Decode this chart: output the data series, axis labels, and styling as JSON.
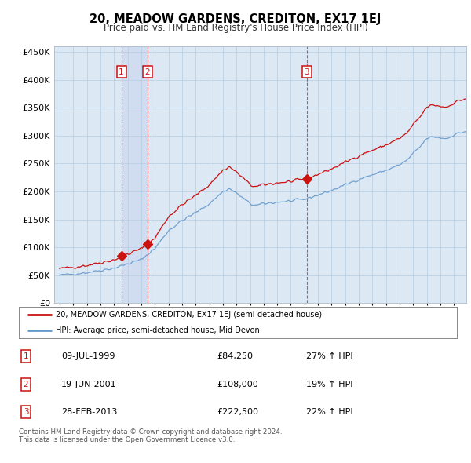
{
  "title": "20, MEADOW GARDENS, CREDITON, EX17 1EJ",
  "subtitle": "Price paid vs. HM Land Registry's House Price Index (HPI)",
  "background_color": "#dce9f5",
  "plot_bg_color": "#dce9f5",
  "red_line_label": "20, MEADOW GARDENS, CREDITON, EX17 1EJ (semi-detached house)",
  "blue_line_label": "HPI: Average price, semi-detached house, Mid Devon",
  "footnote": "Contains HM Land Registry data © Crown copyright and database right 2024.\nThis data is licensed under the Open Government Licence v3.0.",
  "transactions": [
    {
      "label": "1",
      "date": "09-JUL-1999",
      "price": 84250,
      "price_str": "£84,250",
      "pct": "27%",
      "direction": "↑",
      "x_year": 1999.54
    },
    {
      "label": "2",
      "date": "19-JUN-2001",
      "price": 108000,
      "price_str": "£108,000",
      "pct": "19%",
      "direction": "↑",
      "x_year": 2001.46
    },
    {
      "label": "3",
      "date": "28-FEB-2013",
      "price": 222500,
      "price_str": "£222,500",
      "pct": "22%",
      "direction": "↑",
      "x_year": 2013.16
    }
  ],
  "ylim": [
    0,
    460000
  ],
  "yticks": [
    0,
    50000,
    100000,
    150000,
    200000,
    250000,
    300000,
    350000,
    400000,
    450000
  ],
  "xlim_start": 1994.6,
  "xlim_end": 2024.9,
  "red_color": "#cc1111",
  "blue_color": "#6699cc",
  "shade_color": "#ccd9ee"
}
